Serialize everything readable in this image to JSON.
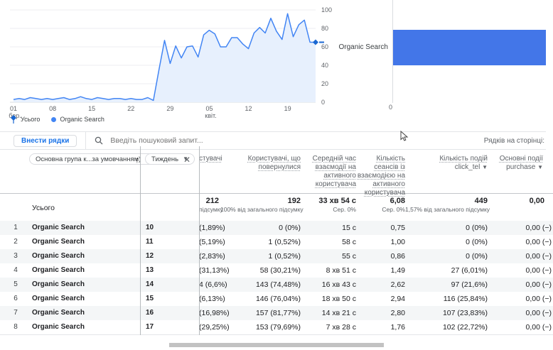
{
  "colors": {
    "line": "#4285f4",
    "line_area": "#e7f0fd",
    "bar": "#4376e8",
    "legend_total": "#1967d2",
    "button_text": "#1a73e8"
  },
  "chart_data": [
    {
      "type": "line",
      "title": "",
      "xlabel": "",
      "ylabel": "",
      "ylim": [
        0,
        100
      ],
      "y_ticks": [
        0,
        20,
        40,
        60,
        80,
        100
      ],
      "y_axis_side": "right",
      "grid": true,
      "legend_position": "bottom-left",
      "legend": [
        {
          "label": "Усього",
          "marker": "diamond-pin",
          "color": "#1967d2"
        },
        {
          "label": "Organic Search",
          "marker": "dot",
          "color": "#4285f4"
        }
      ],
      "x_ticks": [
        {
          "day": 0,
          "label": "01",
          "sub": "бер."
        },
        {
          "day": 7,
          "label": "08",
          "sub": ""
        },
        {
          "day": 14,
          "label": "15",
          "sub": ""
        },
        {
          "day": 21,
          "label": "22",
          "sub": ""
        },
        {
          "day": 28,
          "label": "29",
          "sub": ""
        },
        {
          "day": 35,
          "label": "05",
          "sub": "квіт."
        },
        {
          "day": 42,
          "label": "12",
          "sub": ""
        },
        {
          "day": 49,
          "label": "19",
          "sub": ""
        }
      ],
      "series": [
        {
          "name": "Organic Search",
          "values": [
            3,
            4,
            3,
            5,
            4,
            3,
            4,
            3,
            4,
            5,
            3,
            4,
            6,
            4,
            3,
            5,
            4,
            3,
            4,
            4,
            3,
            4,
            3,
            3,
            5,
            2,
            35,
            67,
            42,
            61,
            48,
            60,
            61,
            49,
            73,
            78,
            74,
            60,
            60,
            70,
            70,
            63,
            58,
            75,
            81,
            75,
            91,
            77,
            68,
            96,
            71,
            84,
            89,
            65,
            65
          ]
        }
      ],
      "end_marker": "diamond-dash"
    },
    {
      "type": "bar",
      "orientation": "horizontal",
      "categories": [
        "Organic Search"
      ],
      "relative_width": 1,
      "bar_extends_beyond_view": true,
      "value_axis_ticks": [
        "0"
      ]
    }
  ],
  "toolbar": {
    "add_rows_label": "Внести рядки",
    "search_placeholder": "Введіть пошуковий запит...",
    "rows_per_page_label": "Рядків на сторінці:"
  },
  "table": {
    "primary_dimension_dropdown": "Основна група к...за умовчанням)",
    "secondary_dimension_dropdown": "Тиждень",
    "columns": [
      {
        "title": "стувачі"
      },
      {
        "title": "Користувачі, що повернулися"
      },
      {
        "title": "Середній час взаємодії на активного користувача"
      },
      {
        "title": "Кількість сеансів із взаємодією на активного користувача"
      },
      {
        "title": "Кількість подій",
        "sub": "click_tel"
      },
      {
        "title": "Основні події",
        "sub": "purchase"
      }
    ],
    "totals": {
      "label": "Усього",
      "users_value": "212",
      "users_sub": "підсумку",
      "returning_value": "192",
      "returning_sub": "100% від загального підсумку",
      "avg_time_value": "33 хв 54 с",
      "avg_time_sub": "Сер. 0%",
      "engaged_value": "6,08",
      "engaged_sub": "Сер. 0%",
      "events_value": "449",
      "events_sub": "1,57% від загального підсумку",
      "key_events_value": "0,00"
    },
    "rows": [
      {
        "num": "1",
        "dimension": "Organic Search",
        "week": "10",
        "users": "(1,89%)",
        "returning": "0 (0%)",
        "avg_time": "15 с",
        "engaged": "0,75",
        "events": "0 (0%)",
        "key_events": "0,00 (−)"
      },
      {
        "num": "2",
        "dimension": "Organic Search",
        "week": "11",
        "users": "(5,19%)",
        "returning": "1 (0,52%)",
        "avg_time": "58 с",
        "engaged": "1,00",
        "events": "0 (0%)",
        "key_events": "0,00 (−)"
      },
      {
        "num": "3",
        "dimension": "Organic Search",
        "week": "12",
        "users": "(2,83%)",
        "returning": "1 (0,52%)",
        "avg_time": "55 с",
        "engaged": "0,86",
        "events": "0 (0%)",
        "key_events": "0,00 (−)"
      },
      {
        "num": "4",
        "dimension": "Organic Search",
        "week": "13",
        "users": "(31,13%)",
        "returning": "58 (30,21%)",
        "avg_time": "8 хв 51 с",
        "engaged": "1,49",
        "events": "27 (6,01%)",
        "key_events": "0,00 (−)"
      },
      {
        "num": "5",
        "dimension": "Organic Search",
        "week": "14",
        "users": "4 (6,6%)",
        "returning": "143 (74,48%)",
        "avg_time": "16 хв 43 с",
        "engaged": "2,62",
        "events": "97 (21,6%)",
        "key_events": "0,00 (−)"
      },
      {
        "num": "6",
        "dimension": "Organic Search",
        "week": "15",
        "users": "(6,13%)",
        "returning": "146 (76,04%)",
        "avg_time": "18 хв 50 с",
        "engaged": "2,94",
        "events": "116 (25,84%)",
        "key_events": "0,00 (−)"
      },
      {
        "num": "7",
        "dimension": "Organic Search",
        "week": "16",
        "users": "(16,98%)",
        "returning": "157 (81,77%)",
        "avg_time": "14 хв 21 с",
        "engaged": "2,80",
        "events": "107 (23,83%)",
        "key_events": "0,00 (−)"
      },
      {
        "num": "8",
        "dimension": "Organic Search",
        "week": "17",
        "users": "(29,25%)",
        "returning": "153 (79,69%)",
        "avg_time": "7 хв 28 с",
        "engaged": "1,76",
        "events": "102 (22,72%)",
        "key_events": "0,00 (−)"
      }
    ]
  }
}
